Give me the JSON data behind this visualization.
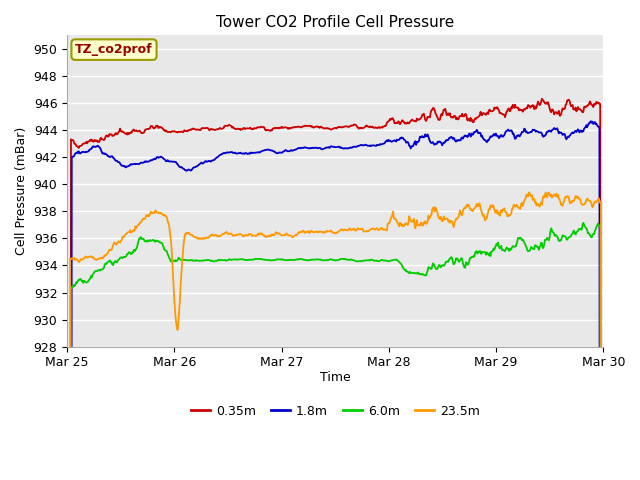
{
  "title": "Tower CO2 Profile Cell Pressure",
  "ylabel": "Cell Pressure (mBar)",
  "xlabel": "Time",
  "annotation_text": "TZ_co2prof",
  "annotation_color": "#990000",
  "annotation_bg": "#FFFFCC",
  "annotation_border": "#999900",
  "ylim": [
    928,
    951
  ],
  "yticks": [
    928,
    930,
    932,
    934,
    936,
    938,
    940,
    942,
    944,
    946,
    948,
    950
  ],
  "date_labels": [
    "Mar 25",
    "Mar 26",
    "Mar 27",
    "Mar 28",
    "Mar 29",
    "Mar 30"
  ],
  "legend_labels": [
    "0.35m",
    "1.8m",
    "6.0m",
    "23.5m"
  ],
  "line_colors": [
    "#cc0000",
    "#0000cc",
    "#00cc00",
    "#ff9900"
  ],
  "background_color": "#ffffff",
  "plot_bg_color": "#e8e8e8",
  "grid_color": "#ffffff",
  "seed": 42
}
